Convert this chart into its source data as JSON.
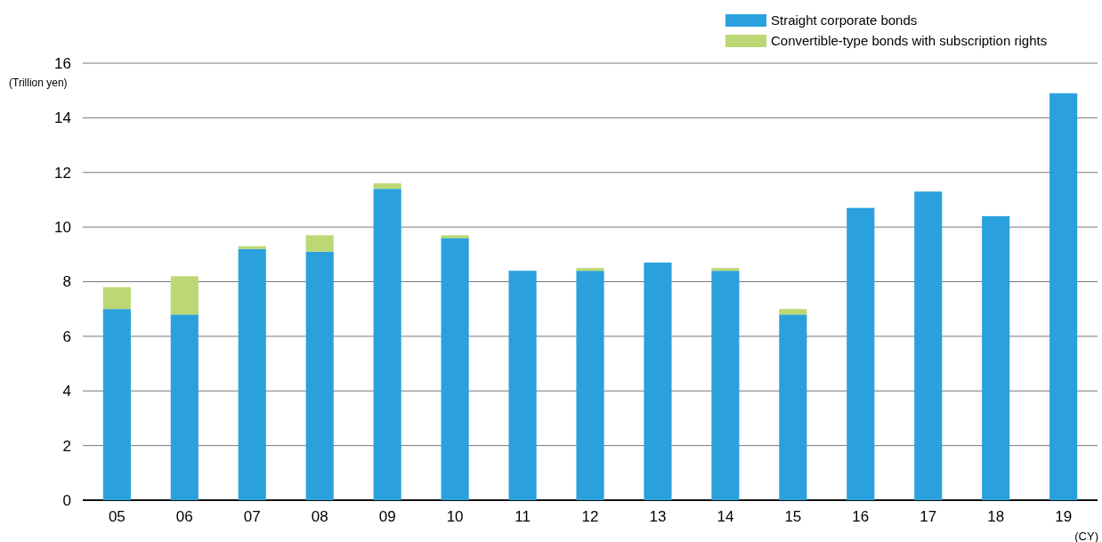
{
  "chart_data": {
    "type": "bar",
    "stacked": true,
    "ylabel": "(Trillion yen)",
    "xlabel": "(CY)",
    "categories": [
      "05",
      "06",
      "07",
      "08",
      "09",
      "10",
      "11",
      "12",
      "13",
      "14",
      "15",
      "16",
      "17",
      "18",
      "19"
    ],
    "series": [
      {
        "name": "Straight corporate bonds",
        "color": "#2aa1dc",
        "values": [
          7.0,
          6.8,
          9.2,
          9.1,
          11.4,
          9.6,
          8.4,
          8.4,
          8.7,
          8.4,
          6.8,
          10.7,
          11.3,
          10.4,
          14.9
        ]
      },
      {
        "name": "Convertible-type bonds with subscription rights",
        "color": "#bcd874",
        "values": [
          0.8,
          1.4,
          0.1,
          0.6,
          0.2,
          0.1,
          0,
          0.1,
          0,
          0.1,
          0.2,
          0,
          0,
          0,
          0
        ]
      }
    ],
    "ylim": [
      0,
      16
    ],
    "yticks": [
      0,
      2,
      4,
      6,
      8,
      10,
      12,
      14,
      16
    ],
    "grid": "y",
    "legend": "top right"
  }
}
